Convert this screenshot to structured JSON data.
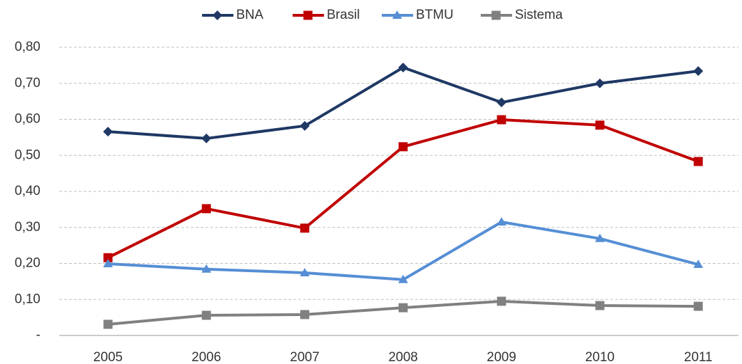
{
  "chart_data": {
    "type": "line",
    "categories": [
      "2005",
      "2006",
      "2007",
      "2008",
      "2009",
      "2010",
      "2011"
    ],
    "series": [
      {
        "name": "BNA",
        "color": "#1f3864",
        "marker": "diamond",
        "values": [
          0.566,
          0.547,
          0.582,
          0.744,
          0.647,
          0.7,
          0.734
        ]
      },
      {
        "name": "Brasil",
        "color": "#c00000",
        "marker": "square",
        "values": [
          0.216,
          0.352,
          0.298,
          0.524,
          0.599,
          0.584,
          0.483
        ]
      },
      {
        "name": "BTMU",
        "color": "#558ed5",
        "marker": "triangle",
        "values": [
          0.199,
          0.184,
          0.174,
          0.155,
          0.315,
          0.269,
          0.197
        ]
      },
      {
        "name": "Sistema",
        "color": "#808080",
        "marker": "square",
        "values": [
          0.031,
          0.056,
          0.058,
          0.077,
          0.095,
          0.083,
          0.081
        ]
      }
    ],
    "ylim": [
      0,
      0.8
    ],
    "yticks": [
      {
        "value": 0,
        "label": "-"
      },
      {
        "value": 0.1,
        "label": "0,10"
      },
      {
        "value": 0.2,
        "label": "0,20"
      },
      {
        "value": 0.3,
        "label": "0,30"
      },
      {
        "value": 0.4,
        "label": "0,40"
      },
      {
        "value": 0.5,
        "label": "0,50"
      },
      {
        "value": 0.6,
        "label": "0,60"
      },
      {
        "value": 0.7,
        "label": "0,70"
      },
      {
        "value": 0.8,
        "label": "0,80"
      }
    ],
    "grid": true,
    "legend": "top"
  }
}
